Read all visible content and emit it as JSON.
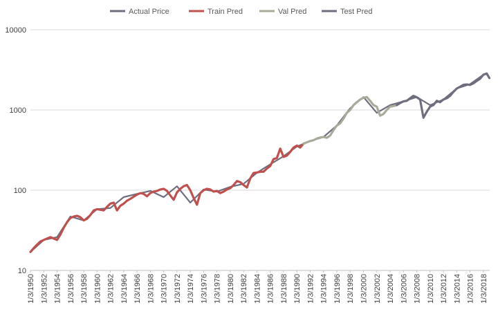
{
  "chart_data": {
    "type": "line",
    "title": "",
    "xlabel": "",
    "ylabel": "",
    "y_scale": "log",
    "ylim": [
      10,
      10000
    ],
    "y_ticks": [
      10,
      100,
      1000,
      10000
    ],
    "y_tick_labels": [
      "10",
      "100",
      "1000",
      "10000"
    ],
    "xlim": [
      "1950-01-03",
      "2018-12-31"
    ],
    "x_tick_labels": [
      "1/3/1950",
      "1/3/1952",
      "1/3/1954",
      "1/3/1956",
      "1/3/1958",
      "1/3/1960",
      "1/3/1962",
      "1/3/1964",
      "1/3/1966",
      "1/3/1968",
      "1/3/1970",
      "1/3/1972",
      "1/3/1974",
      "1/3/1976",
      "1/3/1978",
      "1/3/1980",
      "1/3/1982",
      "1/3/1984",
      "1/3/1986",
      "1/3/1988",
      "1/3/1990",
      "1/3/1992",
      "1/3/1994",
      "1/3/1996",
      "1/3/1998",
      "1/3/2000",
      "1/3/2002",
      "1/3/2004",
      "1/3/2006",
      "1/3/2008",
      "1/3/2010",
      "1/3/2012",
      "1/3/2014",
      "1/3/2016",
      "1/3/2018"
    ],
    "grid": true,
    "legend_position": "top",
    "series": [
      {
        "name": "Actual Price",
        "color": "#6e6e7e",
        "x": [
          1950.0,
          1952.0,
          1954.0,
          1956.0,
          1958.0,
          1960.0,
          1962.0,
          1964.0,
          1966.0,
          1968.0,
          1970.0,
          1972.0,
          1974.0,
          1976.0,
          1978.0,
          1980.0,
          1982.0,
          1984.0,
          1986.0,
          1988.0,
          1990.0,
          1992.0,
          1994.0,
          1996.0,
          1998.0,
          2000.0,
          2002.0,
          2004.0,
          2006.0,
          2008.0,
          2010.0,
          2012.0,
          2014.0,
          2016.0,
          2018.0
        ],
        "values": [
          17,
          24,
          26,
          47,
          42,
          58,
          60,
          82,
          90,
          98,
          82,
          112,
          70,
          102,
          96,
          110,
          120,
          165,
          210,
          265,
          350,
          410,
          460,
          640,
          1050,
          1450,
          920,
          1150,
          1280,
          1450,
          1150,
          1350,
          1850,
          2100,
          2750
        ]
      },
      {
        "name": "Train Pred",
        "color": "#c0504d",
        "x": [
          1950.0,
          1950.5,
          1951.0,
          1951.5,
          1952.0,
          1952.5,
          1953.0,
          1953.5,
          1954.0,
          1954.5,
          1955.0,
          1955.5,
          1956.0,
          1956.5,
          1957.0,
          1957.5,
          1958.0,
          1958.5,
          1959.0,
          1959.5,
          1960.0,
          1960.5,
          1961.0,
          1961.5,
          1962.0,
          1962.5,
          1963.0,
          1963.5,
          1964.0,
          1964.5,
          1965.0,
          1965.5,
          1966.0,
          1966.5,
          1967.0,
          1967.5,
          1968.0,
          1968.5,
          1969.0,
          1969.5,
          1970.0,
          1970.5,
          1971.0,
          1971.5,
          1972.0,
          1972.5,
          1973.0,
          1973.5,
          1974.0,
          1974.5,
          1975.0,
          1975.5,
          1976.0,
          1976.5,
          1977.0,
          1977.5,
          1978.0,
          1978.5,
          1979.0,
          1979.5,
          1980.0,
          1980.5,
          1981.0,
          1981.5,
          1982.0,
          1982.5,
          1983.0,
          1983.5,
          1984.0,
          1984.5,
          1985.0,
          1985.5,
          1986.0,
          1986.5,
          1987.0,
          1987.5,
          1988.0,
          1988.5,
          1989.0,
          1989.5,
          1990.0,
          1990.5,
          1991.0
        ],
        "values": [
          17,
          19,
          21,
          23,
          24,
          25,
          26,
          25,
          24,
          28,
          34,
          40,
          45,
          47,
          48,
          46,
          42,
          44,
          49,
          56,
          58,
          57,
          56,
          62,
          68,
          70,
          56,
          64,
          68,
          74,
          78,
          83,
          88,
          92,
          90,
          84,
          92,
          96,
          98,
          102,
          104,
          98,
          86,
          76,
          94,
          104,
          112,
          116,
          100,
          80,
          66,
          92,
          100,
          104,
          102,
          96,
          98,
          92,
          96,
          102,
          106,
          116,
          130,
          126,
          116,
          108,
          140,
          164,
          166,
          170,
          170,
          186,
          200,
          244,
          252,
          330,
          260,
          270,
          300,
          340,
          360,
          340,
          380
        ]
      },
      {
        "name": "Val Pred",
        "color": "#a9ab9a",
        "x": [
          1991.0,
          1991.5,
          1992.0,
          1992.5,
          1993.0,
          1993.5,
          1994.0,
          1994.5,
          1995.0,
          1995.5,
          1996.0,
          1996.5,
          1997.0,
          1997.5,
          1998.0,
          1998.5,
          1999.0,
          1999.5,
          2000.0,
          2000.5,
          2001.0,
          2001.5,
          2002.0,
          2002.5,
          2003.0,
          2003.5,
          2004.0,
          2004.5,
          2005.0
        ],
        "values": [
          380,
          395,
          410,
          420,
          440,
          455,
          460,
          450,
          480,
          560,
          640,
          680,
          780,
          920,
          1000,
          1150,
          1250,
          1350,
          1420,
          1450,
          1300,
          1150,
          1100,
          850,
          890,
          1000,
          1100,
          1120,
          1150
        ]
      },
      {
        "name": "Test Pred",
        "color": "#6e6e7e",
        "x": [
          2005.0,
          2005.5,
          2006.0,
          2006.5,
          2007.0,
          2007.5,
          2008.0,
          2008.5,
          2009.0,
          2009.5,
          2010.0,
          2010.5,
          2011.0,
          2011.5,
          2012.0,
          2012.5,
          2013.0,
          2013.5,
          2014.0,
          2014.5,
          2015.0,
          2015.5,
          2016.0,
          2016.5,
          2017.0,
          2017.5,
          2018.0,
          2018.5,
          2018.9
        ],
        "values": [
          1150,
          1220,
          1280,
          1300,
          1400,
          1500,
          1440,
          1350,
          800,
          950,
          1100,
          1150,
          1300,
          1250,
          1350,
          1400,
          1500,
          1680,
          1850,
          1950,
          2060,
          2080,
          2050,
          2150,
          2300,
          2450,
          2750,
          2850,
          2500
        ]
      }
    ]
  }
}
